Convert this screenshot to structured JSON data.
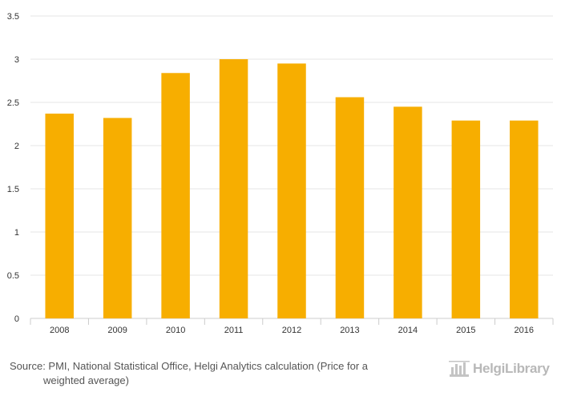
{
  "chart_data": {
    "type": "bar",
    "categories": [
      "2008",
      "2009",
      "2010",
      "2011",
      "2012",
      "2013",
      "2014",
      "2015",
      "2016"
    ],
    "values": [
      2.37,
      2.32,
      2.84,
      3.0,
      2.95,
      2.56,
      2.45,
      2.29,
      2.29
    ],
    "ylim": [
      0,
      3.5
    ],
    "yticks": [
      "0",
      "0.5",
      "1",
      "1.5",
      "2",
      "2.5",
      "3",
      "3.5"
    ],
    "grid": true,
    "bar_color": "#F7AE00",
    "title": "",
    "xlabel": "",
    "ylabel": ""
  },
  "footer": {
    "source_line1": "Source: PMI, National Statistical Office, Helgi Analytics calculation (Price for a",
    "source_line2": "weighted average)",
    "logo_text": "HelgiLibrary"
  },
  "colors": {
    "grid": "#e6e6e6",
    "axis_text": "#333333",
    "footer_text": "#555555",
    "logo": "#b8b8b8"
  }
}
